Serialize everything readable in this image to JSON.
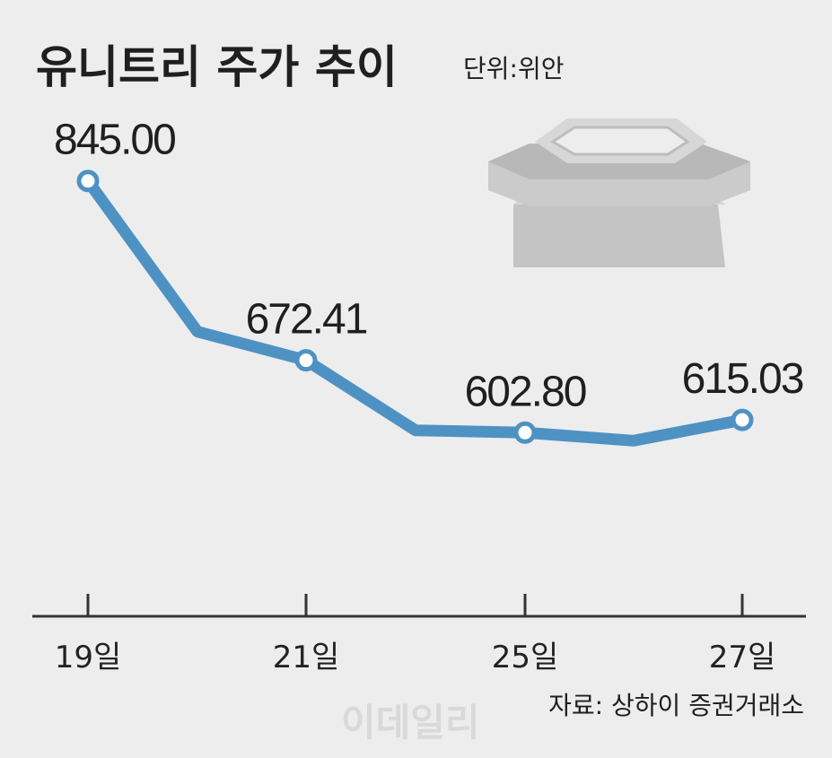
{
  "title": "유니트리 주가 추이",
  "unit": "단위:위안",
  "source": "자료: 상하이 증권거래소",
  "watermark": "이데일리",
  "colors": {
    "line": "#4e92c4",
    "axis": "#333333",
    "icon": "#c9c9c9"
  },
  "icon": "stock-exchange-building-icon",
  "chart_data": {
    "type": "line",
    "title": "유니트리 주가 추이",
    "unit": "단위:위안",
    "x": [
      19,
      20,
      21,
      22,
      25,
      26,
      27
    ],
    "tick_positions": [
      19,
      21,
      25,
      27
    ],
    "tick_labels": [
      "19일",
      "21일",
      "25일",
      "27일"
    ],
    "series": [
      {
        "values": [
          845.0,
          700,
          672.41,
          605,
          602.8,
          595,
          615.03
        ]
      }
    ],
    "markers": [
      0,
      2,
      4,
      6
    ],
    "data_labels": [
      "845.00",
      "",
      "672.41",
      "",
      "602.80",
      "",
      "615.03"
    ],
    "ylim": [
      540,
      875
    ],
    "grid": false,
    "legend": "none"
  }
}
